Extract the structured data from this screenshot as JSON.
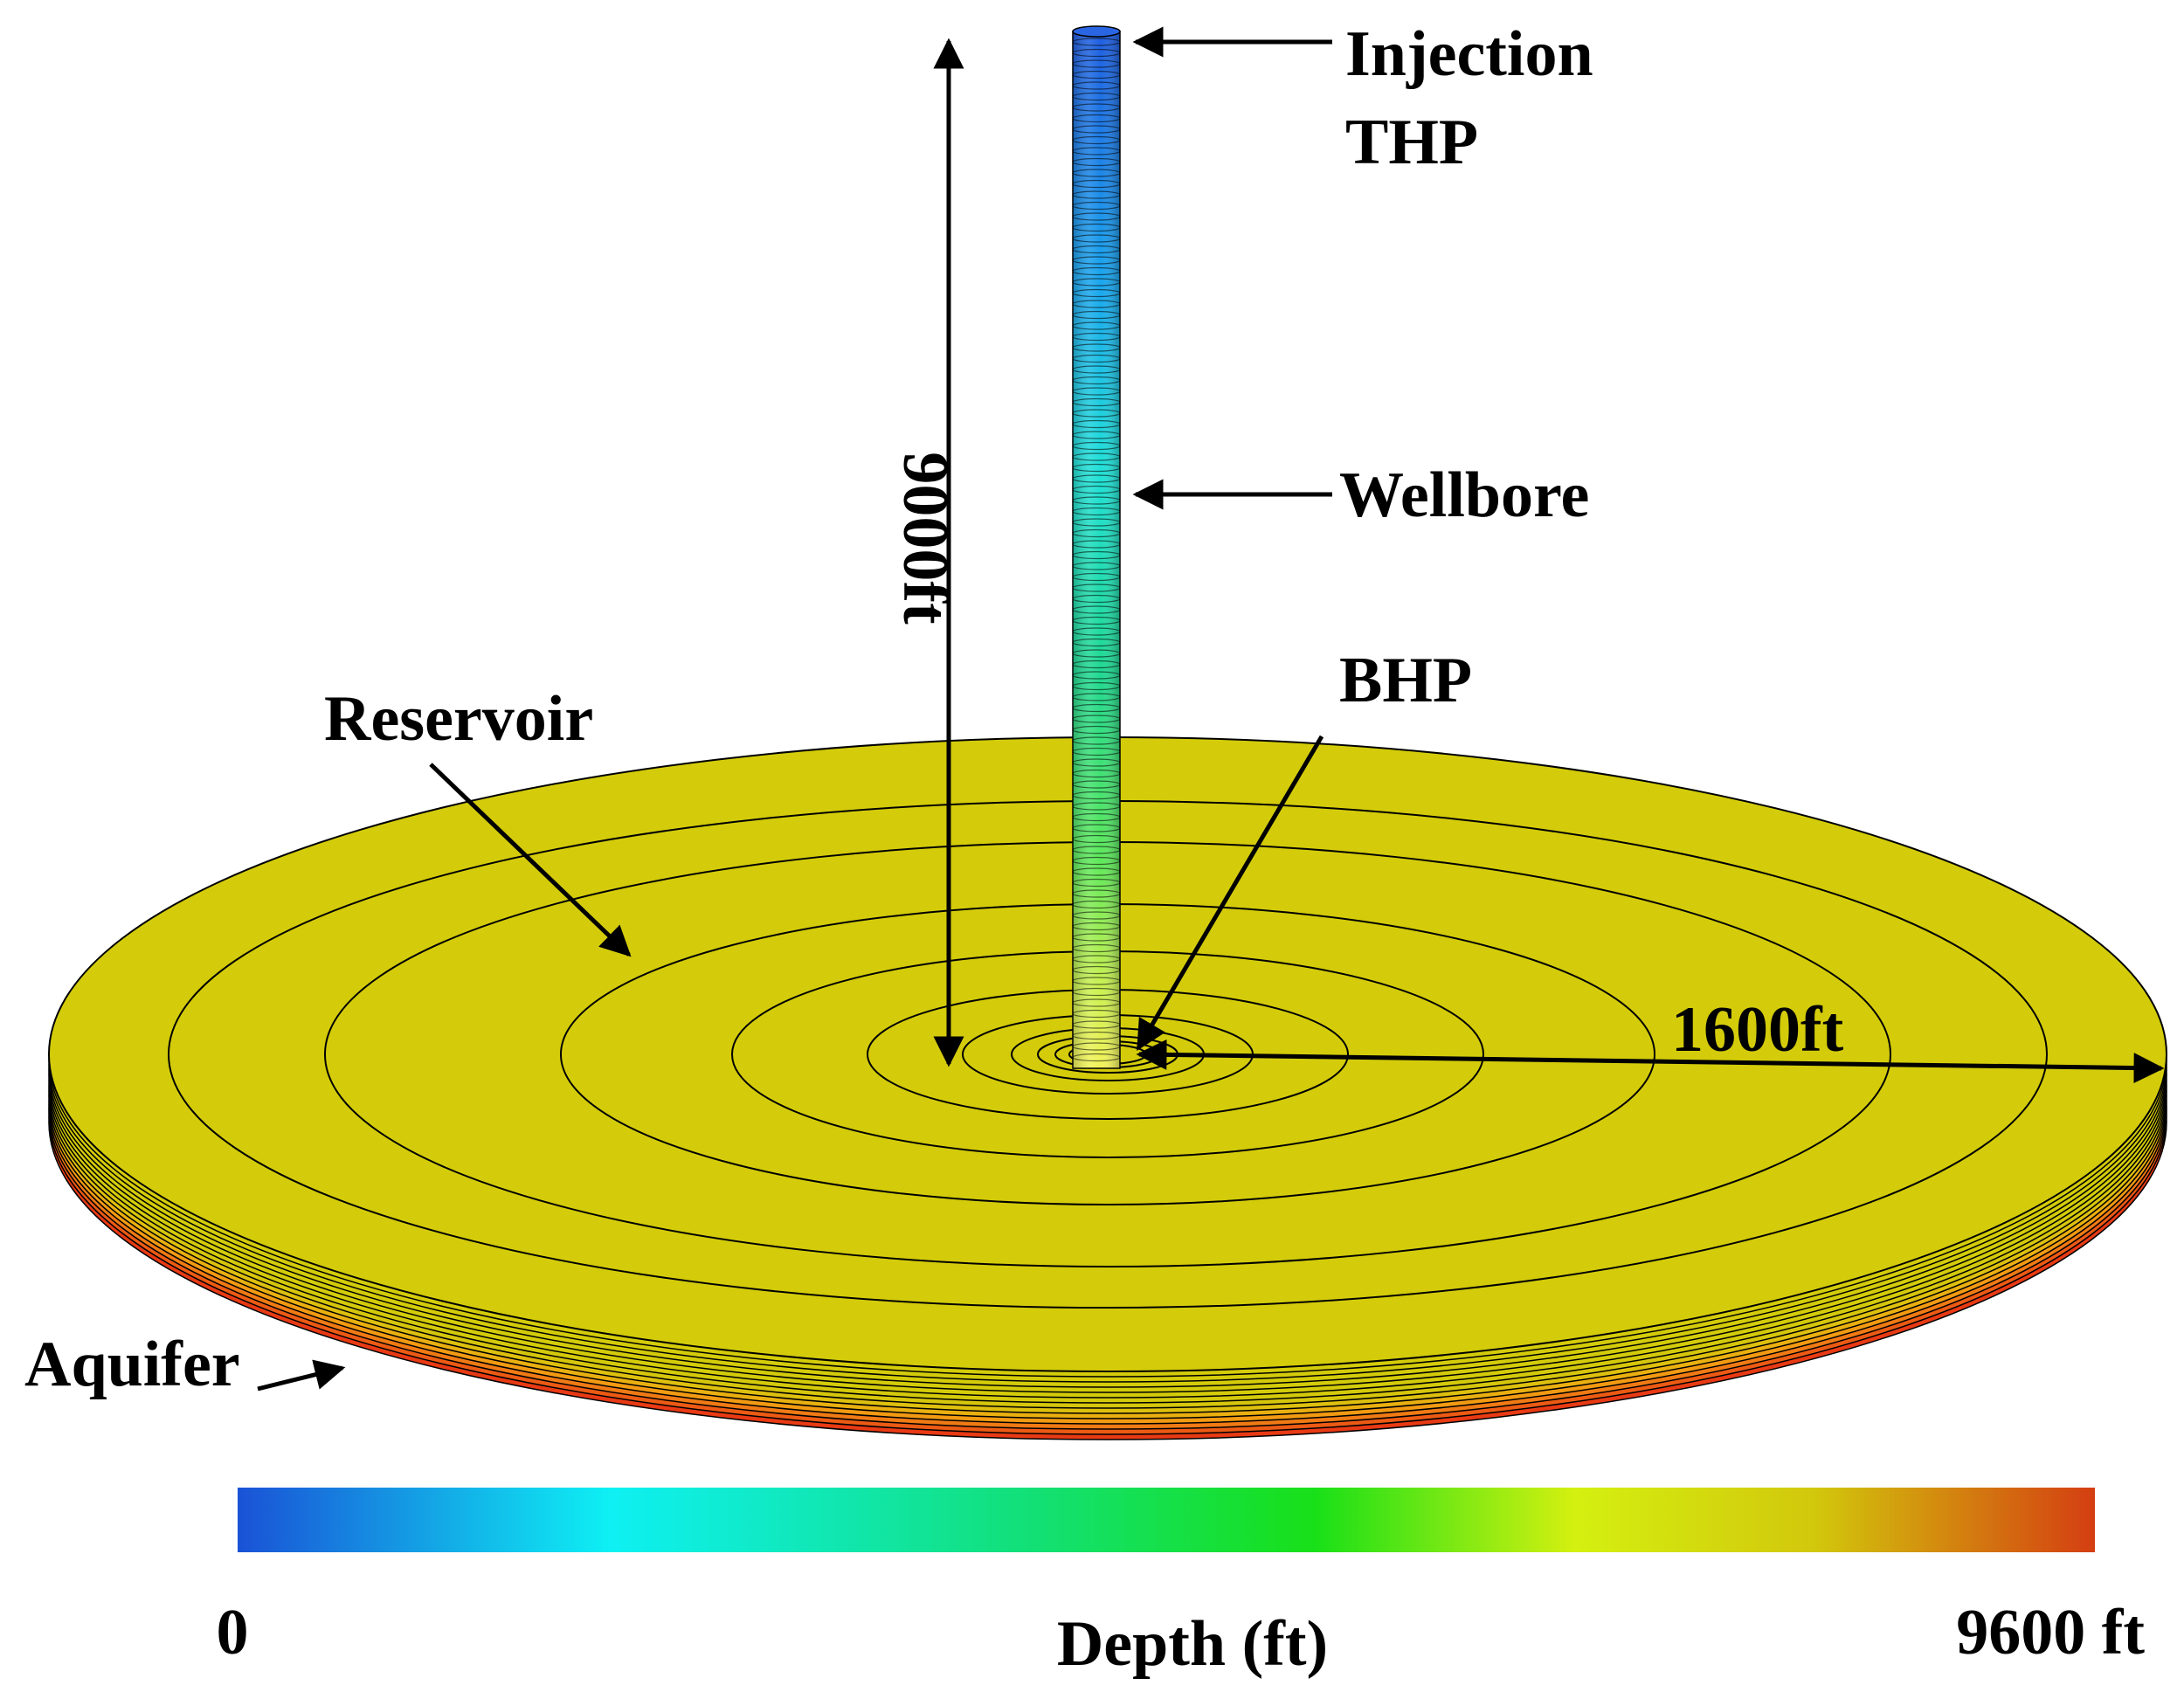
{
  "labels": {
    "injection_line1": "Injection",
    "injection_line2": "THP",
    "wellbore": "Wellbore",
    "bhp": "BHP",
    "reservoir": "Reservoir",
    "aquifer": "Aquifer",
    "height": "9000ft",
    "radius": "1600ft"
  },
  "colorbar": {
    "min_label": "0",
    "max_label": "9600 ft",
    "title": "Depth (ft)",
    "min_value": 0,
    "max_value": 9600,
    "stops": [
      "#1a52d6",
      "#0ef0f4",
      "#12e07a",
      "#18e018",
      "#d4f010",
      "#d2c70c",
      "#d43e12"
    ]
  },
  "colors": {
    "reservoir_top": "#d4cc0a",
    "wellbore_top": "#1f5de0",
    "wellbore_bottom": "#f3f25a",
    "aquifer_bottom": "#e83a14"
  }
}
